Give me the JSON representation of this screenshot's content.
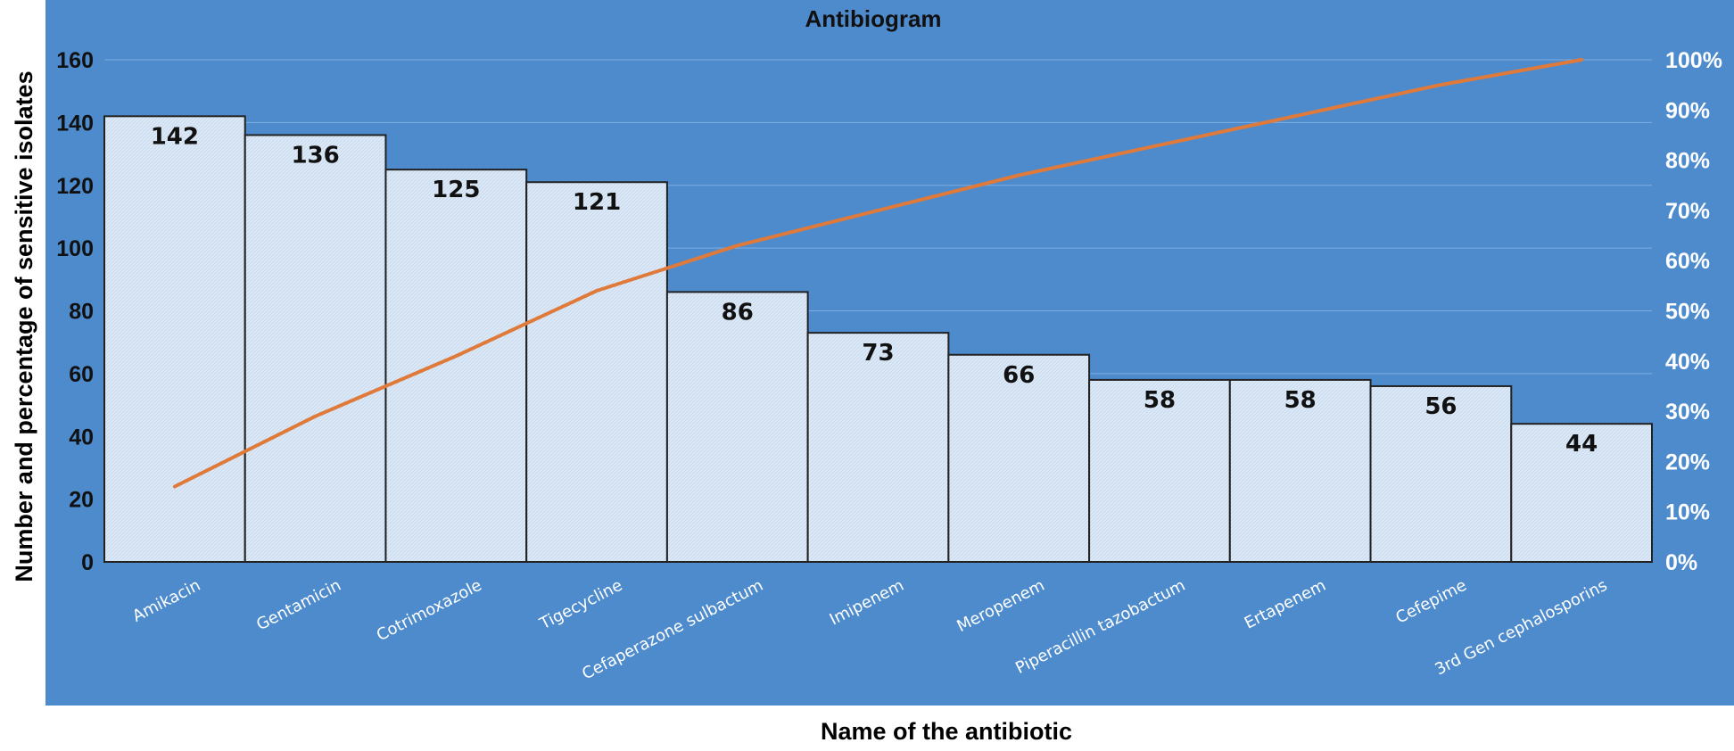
{
  "chart_data": {
    "type": "bar",
    "title": "Antibiogram",
    "xlabel": "Name of the antibiotic",
    "ylabel": "Number and percentage of sensitive isolates",
    "categories": [
      "Amikacin",
      "Gentamicin",
      "Cotrimoxazole",
      "Tigecycline",
      "Cefaperazone sulbactum",
      "Imipenem",
      "Meropenem",
      "Piperacillin tazobactum",
      "Ertapenem",
      "Cefepime",
      "3rd Gen cephalosporins"
    ],
    "values": [
      142,
      136,
      125,
      121,
      86,
      73,
      66,
      58,
      58,
      56,
      44
    ],
    "data_labels": [
      "142",
      "136",
      "125",
      "121",
      "86",
      "73",
      "66",
      "58",
      "58",
      "56",
      "44"
    ],
    "cumulative_percent": [
      15,
      29,
      41,
      54,
      63,
      70,
      77,
      83,
      89,
      95,
      100
    ],
    "ylim": [
      0,
      160
    ],
    "yticks": [
      "0",
      "20",
      "40",
      "60",
      "80",
      "100",
      "120",
      "140",
      "160"
    ],
    "y2lim": [
      0,
      100
    ],
    "y2ticks": [
      "0%",
      "10%",
      "20%",
      "30%",
      "40%",
      "50%",
      "60%",
      "70%",
      "80%",
      "90%",
      "100%"
    ],
    "grid": true,
    "colors": {
      "plot_background": "#4d8bcd",
      "bar_fill": "#dde9f6",
      "bar_stroke": "#222222",
      "line": "#e07a3a",
      "gridline": "#7eaee0"
    }
  }
}
